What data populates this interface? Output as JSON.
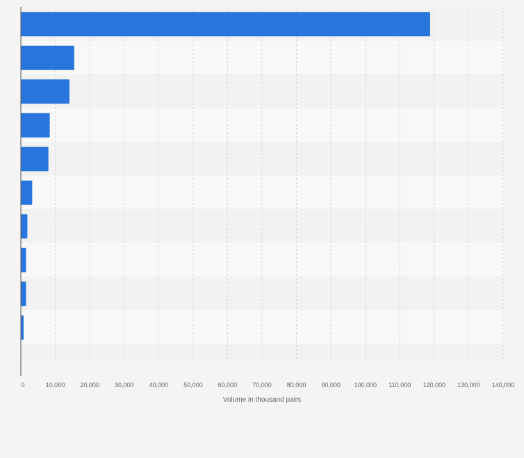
{
  "chart_data": {
    "type": "bar",
    "orientation": "horizontal",
    "title": "",
    "xlabel": "Volume in thousand pairs",
    "ylabel": "",
    "categories": [
      "",
      "",
      "",
      "",
      "",
      "",
      "",
      "",
      "",
      ""
    ],
    "values": [
      118800,
      15500,
      14100,
      8400,
      8000,
      3300,
      1900,
      1500,
      1500,
      800
    ],
    "xlim": [
      0,
      140000
    ],
    "xticks": [
      0,
      10000,
      20000,
      30000,
      40000,
      50000,
      60000,
      70000,
      80000,
      90000,
      100000,
      110000,
      120000,
      130000,
      140000
    ],
    "xtick_labels": [
      "0",
      "10,000",
      "20,000",
      "30,000",
      "40,000",
      "50,000",
      "60,000",
      "70,000",
      "80,000",
      "90,000",
      "100,000",
      "110,000",
      "120,000",
      "130,000",
      "140,000"
    ],
    "grid": true,
    "legend": "none",
    "colors": {
      "bar": "#2876dd",
      "band_dark": "#f2f2f2",
      "band_light": "#f8f8f8",
      "page_bg": "#f4f4f4",
      "grid": "#d6d6d6",
      "axis": "#555555",
      "text": "#666666"
    }
  }
}
